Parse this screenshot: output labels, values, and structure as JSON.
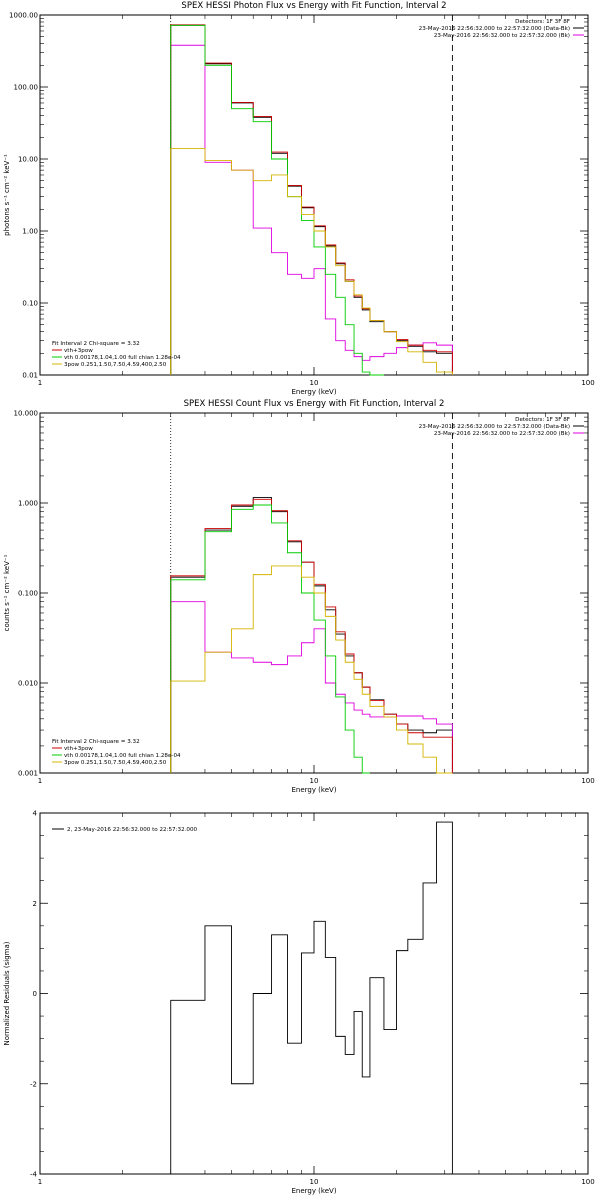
{
  "chart_data": [
    {
      "type": "line",
      "title": "SPEX HESSI Photon Flux vs Energy with Fit Function, Interval 2",
      "xlabel": "Energy (keV)",
      "ylabel": "photons s⁻¹ cm⁻² keV⁻¹",
      "xscale": "log",
      "yscale": "log",
      "xlim": [
        1,
        100
      ],
      "ylim": [
        0.01,
        1000
      ],
      "x_ticks": [
        "1",
        "10",
        "100"
      ],
      "y_ticks": [
        "0.01",
        "0.10",
        "1.00",
        "10.00",
        "100.00",
        "1000.00"
      ],
      "corner_text": [
        "Detectors: 1F 3F 8F",
        "23-May-2016 22:56:32.000 to 22:57:32.000 (Data-Bk)",
        "23-May-2016 22:56:32.000 to 22:57:32.000 (Bk)"
      ],
      "legend_header": "Fit Interval 2   Chi-square = 3.32",
      "edges": [
        3.0,
        4.0,
        5.0,
        6.0,
        7.0,
        8.0,
        9.0,
        10.0,
        11.0,
        12.0,
        13.0,
        14.0,
        15.0,
        16.0,
        18.0,
        20.0,
        22.0,
        25.0,
        28.0,
        32.0
      ],
      "lower_limit": 3.0,
      "upper_limit": 32.0,
      "series": [
        {
          "name": "Data-Bk",
          "color": "#000000",
          "values": [
            720,
            210,
            60,
            38,
            12,
            4.2,
            2.1,
            1.15,
            0.62,
            0.35,
            0.2,
            0.12,
            0.08,
            0.055,
            0.04,
            0.03,
            0.025,
            0.021,
            0.02
          ]
        },
        {
          "name": "Bk",
          "color": "#e000e0",
          "values": [
            380,
            9,
            7,
            1.1,
            0.5,
            0.25,
            0.22,
            0.3,
            0.06,
            0.03,
            0.022,
            0.018,
            0.016,
            0.018,
            0.02,
            0.024,
            0.026,
            0.028,
            0.026
          ]
        },
        {
          "name": "vth+3pow",
          "color": "#cc0000",
          "values": [
            730,
            215,
            61,
            39,
            12.5,
            4.3,
            2.15,
            1.18,
            0.64,
            0.36,
            0.21,
            0.125,
            0.083,
            0.057,
            0.04,
            0.031,
            0.026,
            0.022,
            0.021
          ]
        },
        {
          "name": "vth 0.00178,1.04,1.00  full chian 1.28e-04",
          "color": "#00cc00",
          "values": [
            720,
            200,
            50,
            33,
            10,
            3.0,
            1.4,
            0.6,
            0.25,
            0.12,
            0.05,
            0.02,
            0.011,
            0.01
          ]
        },
        {
          "name": "3pow 0.251,1.50,7.50,4.59,400,2.50",
          "color": "#d4b400",
          "values": [
            14,
            9.5,
            7,
            5,
            6,
            3.0,
            1.7,
            1.0,
            0.6,
            0.33,
            0.2,
            0.13,
            0.085,
            0.057,
            0.04,
            0.029,
            0.021,
            0.015,
            0.011
          ]
        }
      ]
    },
    {
      "type": "line",
      "title": "SPEX HESSI Count Flux vs Energy with Fit Function, Interval 2",
      "xlabel": "Energy (keV)",
      "ylabel": "counts s⁻¹ cm⁻² keV⁻¹",
      "xscale": "log",
      "yscale": "log",
      "xlim": [
        1,
        100
      ],
      "ylim": [
        0.001,
        10
      ],
      "x_ticks": [
        "1",
        "10",
        "100"
      ],
      "y_ticks": [
        "0.001",
        "0.010",
        "0.100",
        "1.000",
        "10.000"
      ],
      "corner_text": [
        "Detectors: 1F 3F 8F",
        "23-May-2016 22:56:32.000 to 22:57:32.000 (Data-Bk)",
        "23-May-2016 22:56:32.000 to 22:57:32.000 (Bk)"
      ],
      "legend_header": "Fit Interval 2   Chi-square = 3.32",
      "edges": [
        3.0,
        4.0,
        5.0,
        6.0,
        7.0,
        8.0,
        9.0,
        10.0,
        11.0,
        12.0,
        13.0,
        14.0,
        15.0,
        16.0,
        18.0,
        20.0,
        22.0,
        25.0,
        28.0,
        32.0
      ],
      "lower_limit": 3.0,
      "upper_limit": 32.0,
      "series": [
        {
          "name": "Data-Bk",
          "color": "#000000",
          "values": [
            0.15,
            0.5,
            0.92,
            1.15,
            0.8,
            0.37,
            0.22,
            0.12,
            0.065,
            0.035,
            0.02,
            0.013,
            0.009,
            0.0065,
            0.0045,
            0.0035,
            0.003,
            0.0028,
            0.003
          ]
        },
        {
          "name": "Bk",
          "color": "#e000e0",
          "values": [
            0.08,
            0.022,
            0.019,
            0.017,
            0.016,
            0.02,
            0.028,
            0.04,
            0.01,
            0.0075,
            0.006,
            0.005,
            0.0045,
            0.0042,
            0.0042,
            0.0043,
            0.0043,
            0.004,
            0.0035
          ]
        },
        {
          "name": "vth+3pow",
          "color": "#cc0000",
          "values": [
            0.155,
            0.52,
            0.95,
            1.1,
            0.82,
            0.38,
            0.22,
            0.125,
            0.07,
            0.037,
            0.021,
            0.013,
            0.009,
            0.0064,
            0.0045,
            0.0035,
            0.0028,
            0.0025,
            0.0025
          ]
        },
        {
          "name": "vth 0.00178,1.04,1.00  full chian 1.28e-04",
          "color": "#00cc00",
          "values": [
            0.14,
            0.48,
            0.85,
            0.95,
            0.6,
            0.28,
            0.1,
            0.05,
            0.02,
            0.007,
            0.003,
            0.0015,
            0.001
          ]
        },
        {
          "name": "3pow 0.251,1.50,7.50,4.59,400,2.50",
          "color": "#d4b400",
          "values": [
            0.0105,
            0.022,
            0.04,
            0.16,
            0.2,
            0.2,
            0.15,
            0.1,
            0.055,
            0.03,
            0.017,
            0.011,
            0.0075,
            0.0055,
            0.0042,
            0.003,
            0.0021,
            0.0015,
            0.001
          ]
        }
      ]
    },
    {
      "type": "line",
      "title": "",
      "xlabel": "Energy (keV)",
      "ylabel": "Normalized Residuals (sigma)",
      "xscale": "log",
      "yscale": "linear",
      "xlim": [
        1,
        100
      ],
      "ylim": [
        -4,
        4
      ],
      "x_ticks": [
        "1",
        "10",
        "100"
      ],
      "y_ticks": [
        "-4",
        "-2",
        "0",
        "2",
        "4"
      ],
      "legend": "2, 23-May-2016 22:56:32.000 to 22:57:32.000",
      "edges": [
        3.0,
        4.0,
        5.0,
        6.0,
        7.0,
        8.0,
        9.0,
        10.0,
        11.0,
        12.0,
        13.0,
        14.0,
        15.0,
        16.0,
        18.0,
        20.0,
        22.0,
        25.0,
        28.0,
        32.0
      ],
      "series": [
        {
          "name": "Residuals",
          "color": "#000000",
          "values": [
            -0.15,
            1.5,
            -2.0,
            0.0,
            1.3,
            -1.1,
            0.9,
            1.6,
            0.8,
            -0.95,
            -1.35,
            -0.4,
            -1.85,
            0.35,
            -0.8,
            0.95,
            1.2,
            2.45,
            3.8
          ]
        }
      ]
    }
  ]
}
